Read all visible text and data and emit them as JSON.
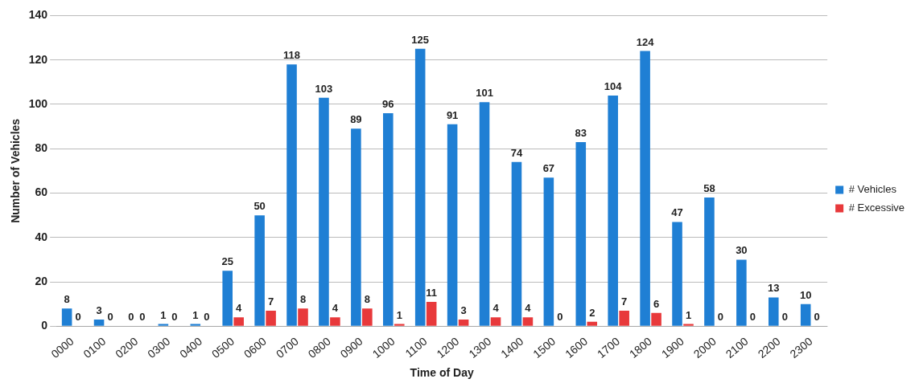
{
  "chart_data": {
    "type": "bar",
    "xlabel": "Time of Day",
    "ylabel": "Number of Vehicles",
    "categories": [
      "0000",
      "0100",
      "0200",
      "0300",
      "0400",
      "0500",
      "0600",
      "0700",
      "0800",
      "0900",
      "1000",
      "1100",
      "1200",
      "1300",
      "1400",
      "1500",
      "1600",
      "1700",
      "1800",
      "1900",
      "2000",
      "2100",
      "2200",
      "2300"
    ],
    "series": [
      {
        "name": "# Vehicles",
        "color": "#1f7fd4",
        "values": [
          8,
          3,
          0,
          1,
          1,
          25,
          50,
          118,
          103,
          89,
          96,
          125,
          91,
          101,
          74,
          67,
          83,
          104,
          124,
          47,
          58,
          30,
          13,
          10
        ]
      },
      {
        "name": "# Excessive",
        "color": "#e8393b",
        "values": [
          0,
          0,
          0,
          0,
          0,
          4,
          7,
          8,
          4,
          8,
          1,
          11,
          3,
          4,
          4,
          0,
          2,
          7,
          6,
          1,
          0,
          0,
          0,
          0
        ]
      }
    ],
    "ylim": [
      0,
      140
    ],
    "yticks": [
      0,
      20,
      40,
      60,
      80,
      100,
      120,
      140
    ],
    "grid": "y",
    "legend": "right",
    "data_labels": true
  }
}
